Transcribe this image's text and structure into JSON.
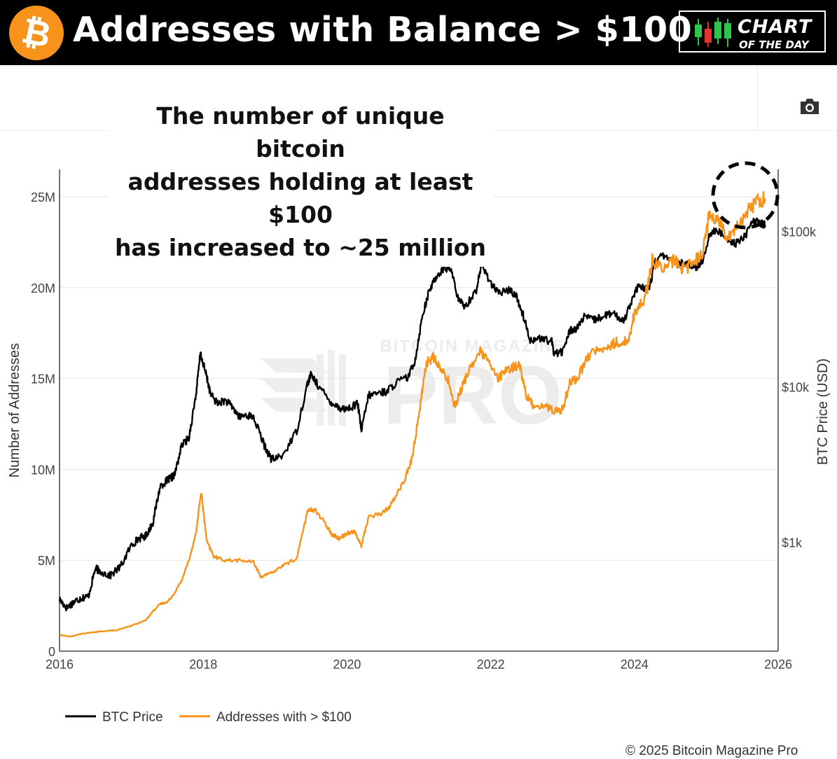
{
  "header": {
    "title": "Addresses with Balance > $100",
    "logo_symbol": "₿",
    "badge_line1": "CHART",
    "badge_line2": "OF THE DAY",
    "brand_color": "#f7931a"
  },
  "toolbar": {
    "camera_icon": "camera-icon"
  },
  "annotation": {
    "line1": "The number of  unique bitcoin",
    "line2": "addresses holding at least $100",
    "line3": "has increased to ~25 million"
  },
  "watermark": {
    "small": "BITCOIN MAGAZINE",
    "big": "PRO"
  },
  "footer": {
    "credit": "© 2025 Bitcoin Magazine Pro"
  },
  "chart_data": {
    "type": "line",
    "xlabel": "",
    "ylabel_left": "Number of Addresses",
    "ylabel_right": "BTC Price (USD)",
    "xlim": [
      2016,
      2026
    ],
    "ylim_left": [
      0,
      26500000
    ],
    "ylim_right_log": [
      200,
      250000
    ],
    "x_ticks": [
      "2016",
      "2018",
      "2020",
      "2022",
      "2024",
      "2026"
    ],
    "y_ticks_left": [
      {
        "value": 0,
        "label": "0"
      },
      {
        "value": 5000000,
        "label": "5M"
      },
      {
        "value": 10000000,
        "label": "10M"
      },
      {
        "value": 15000000,
        "label": "15M"
      },
      {
        "value": 20000000,
        "label": "20M"
      },
      {
        "value": 25000000,
        "label": "25M"
      }
    ],
    "y_ticks_right": [
      {
        "value": 1000,
        "label": "$1k"
      },
      {
        "value": 10000,
        "label": "$10k"
      },
      {
        "value": 100000,
        "label": "$100k"
      }
    ],
    "series": [
      {
        "name": "BTC Price",
        "axis": "right",
        "color": "#000000",
        "x": [
          2016.0,
          2016.1,
          2016.2,
          2016.3,
          2016.4,
          2016.5,
          2016.55,
          2016.7,
          2016.85,
          2017.0,
          2017.1,
          2017.2,
          2017.3,
          2017.4,
          2017.5,
          2017.55,
          2017.6,
          2017.7,
          2017.8,
          2017.9,
          2017.96,
          2018.05,
          2018.1,
          2018.2,
          2018.3,
          2018.4,
          2018.5,
          2018.6,
          2018.7,
          2018.85,
          2018.95,
          2019.1,
          2019.3,
          2019.45,
          2019.5,
          2019.6,
          2019.75,
          2019.9,
          2020.0,
          2020.15,
          2020.2,
          2020.3,
          2020.45,
          2020.55,
          2020.7,
          2020.85,
          2020.95,
          2021.05,
          2021.15,
          2021.25,
          2021.35,
          2021.45,
          2021.55,
          2021.65,
          2021.8,
          2021.87,
          2022.0,
          2022.1,
          2022.25,
          2022.35,
          2022.45,
          2022.55,
          2022.7,
          2022.85,
          2022.88,
          2023.0,
          2023.1,
          2023.2,
          2023.3,
          2023.45,
          2023.6,
          2023.7,
          2023.85,
          2023.95,
          2024.05,
          2024.2,
          2024.3,
          2024.45,
          2024.6,
          2024.7,
          2024.85,
          2024.95,
          2025.05,
          2025.15,
          2025.3,
          2025.4,
          2025.55,
          2025.65,
          2025.75,
          2025.82
        ],
        "y": [
          430,
          380,
          415,
          440,
          450,
          680,
          660,
          610,
          700,
          960,
          1060,
          1100,
          1350,
          2300,
          2500,
          2600,
          2700,
          4200,
          4700,
          9000,
          16500,
          11500,
          9000,
          7800,
          8200,
          7500,
          6400,
          6600,
          6400,
          4200,
          3400,
          3600,
          5200,
          10500,
          12000,
          10200,
          8200,
          7300,
          7200,
          7800,
          5200,
          8800,
          9200,
          9300,
          10800,
          11500,
          15000,
          29000,
          42000,
          52000,
          58000,
          57000,
          36000,
          33000,
          42000,
          61000,
          47000,
          40000,
          42000,
          39000,
          29000,
          20000,
          20500,
          19500,
          16500,
          16800,
          23000,
          24000,
          28000,
          27000,
          29000,
          29500,
          26500,
          35000,
          44000,
          42000,
          67000,
          70000,
          61000,
          63000,
          58000,
          65000,
          97000,
          101000,
          90000,
          83000,
          95000,
          117000,
          113000,
          110000
        ]
      },
      {
        "name": "Addresses with > $100",
        "axis": "left",
        "color": "#f7931a",
        "x": [
          2016.0,
          2016.15,
          2016.3,
          2016.5,
          2016.6,
          2016.8,
          2017.0,
          2017.2,
          2017.3,
          2017.4,
          2017.5,
          2017.6,
          2017.7,
          2017.8,
          2017.9,
          2017.97,
          2018.05,
          2018.15,
          2018.3,
          2018.5,
          2018.7,
          2018.8,
          2018.95,
          2019.1,
          2019.3,
          2019.45,
          2019.55,
          2019.7,
          2019.8,
          2019.9,
          2020.0,
          2020.1,
          2020.2,
          2020.3,
          2020.5,
          2020.6,
          2020.8,
          2020.9,
          2021.0,
          2021.1,
          2021.2,
          2021.3,
          2021.4,
          2021.5,
          2021.6,
          2021.7,
          2021.85,
          2021.95,
          2022.1,
          2022.25,
          2022.4,
          2022.5,
          2022.6,
          2022.75,
          2022.9,
          2023.0,
          2023.1,
          2023.2,
          2023.4,
          2023.6,
          2023.75,
          2023.9,
          2024.0,
          2024.15,
          2024.25,
          2024.4,
          2024.55,
          2024.7,
          2024.85,
          2024.95,
          2025.05,
          2025.2,
          2025.3,
          2025.45,
          2025.6,
          2025.7,
          2025.82
        ],
        "y": [
          900000,
          800000,
          950000,
          1050000,
          1100000,
          1150000,
          1400000,
          1700000,
          2200000,
          2600000,
          2700000,
          3200000,
          3900000,
          5000000,
          6500000,
          8800000,
          6000000,
          5200000,
          5000000,
          5000000,
          4900000,
          4100000,
          4300000,
          4700000,
          5100000,
          7700000,
          7800000,
          7000000,
          6400000,
          6200000,
          6500000,
          6600000,
          5800000,
          7400000,
          7600000,
          8000000,
          9400000,
          10500000,
          13000000,
          15800000,
          16200000,
          15500000,
          15000000,
          13500000,
          14500000,
          15500000,
          16500000,
          16000000,
          15000000,
          15500000,
          15800000,
          14000000,
          13500000,
          13500000,
          13200000,
          13300000,
          14800000,
          15000000,
          16500000,
          16600000,
          17000000,
          17000000,
          18500000,
          19500000,
          21500000,
          21000000,
          21500000,
          21000000,
          21500000,
          22000000,
          24200000,
          23500000,
          22800000,
          23500000,
          24300000,
          24800000,
          24900000
        ]
      }
    ]
  }
}
